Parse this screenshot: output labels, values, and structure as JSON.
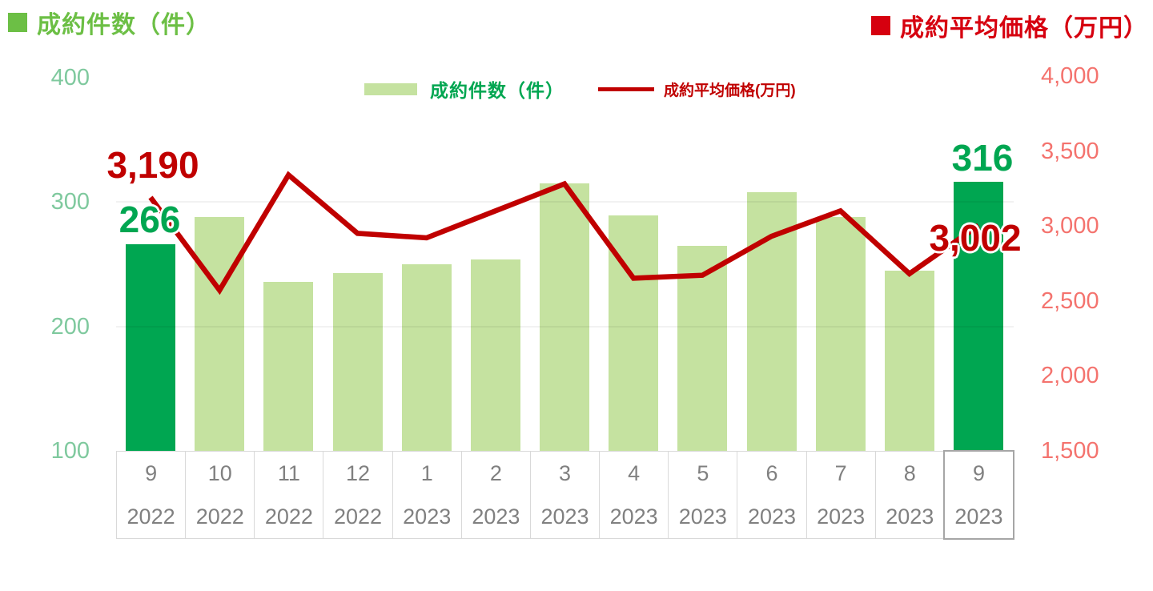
{
  "header": {
    "count_title": "成約件数（件）",
    "price_title": "成約平均価格（万円）"
  },
  "legend": {
    "count_label": "成約件数（件）",
    "price_label": "成約平均価格(万円)"
  },
  "colors": {
    "bar_default": "#c5e2a0",
    "bar_highlight": "#00a651",
    "line": "#c00000",
    "count_title_green": "#6cbf45",
    "price_title_red": "#d6000f",
    "left_axis_label": "#7fc99e",
    "right_axis_label": "#f4736e",
    "category_text": "#808080",
    "annotation_count": "#00a651",
    "annotation_price": "#c00000"
  },
  "chart_data": {
    "type": "combo",
    "title": "",
    "categories": [
      {
        "month": "9",
        "year": "2022"
      },
      {
        "month": "10",
        "year": "2022"
      },
      {
        "month": "11",
        "year": "2022"
      },
      {
        "month": "12",
        "year": "2022"
      },
      {
        "month": "1",
        "year": "2023"
      },
      {
        "month": "2",
        "year": "2023"
      },
      {
        "month": "3",
        "year": "2023"
      },
      {
        "month": "4",
        "year": "2023"
      },
      {
        "month": "5",
        "year": "2023"
      },
      {
        "month": "6",
        "year": "2023"
      },
      {
        "month": "7",
        "year": "2023"
      },
      {
        "month": "8",
        "year": "2023"
      },
      {
        "month": "9",
        "year": "2023"
      }
    ],
    "series": [
      {
        "name": "成約件数（件）",
        "type": "bar",
        "axis": "left",
        "values": [
          266,
          288,
          236,
          243,
          250,
          254,
          315,
          289,
          265,
          308,
          288,
          245,
          316
        ],
        "highlighted_indices": [
          0,
          12
        ]
      },
      {
        "name": "成約平均価格(万円)",
        "type": "line",
        "axis": "right",
        "values": [
          3190,
          2570,
          3340,
          2950,
          2920,
          3100,
          3280,
          2650,
          2670,
          2930,
          3100,
          2680,
          3002
        ]
      }
    ],
    "left_axis": {
      "min": 100,
      "max": 400,
      "tick_labels": [
        "400",
        "300",
        "200",
        "100"
      ]
    },
    "right_axis": {
      "min": 1500,
      "max": 4000,
      "tick_labels": [
        "4,000",
        "3,500",
        "3,000",
        "2,500",
        "2,000",
        "1,500"
      ]
    },
    "gridlines_at_left_values": [
      300,
      200
    ],
    "legend_position": "top-center",
    "annotations": [
      {
        "id": "price-first",
        "text": "3,190",
        "series": "price",
        "point_index": 0
      },
      {
        "id": "count-first",
        "text": "266",
        "series": "count",
        "point_index": 0
      },
      {
        "id": "count-last",
        "text": "316",
        "series": "count",
        "point_index": 12
      },
      {
        "id": "price-last",
        "text": "3,002",
        "series": "price",
        "point_index": 12
      }
    ]
  }
}
